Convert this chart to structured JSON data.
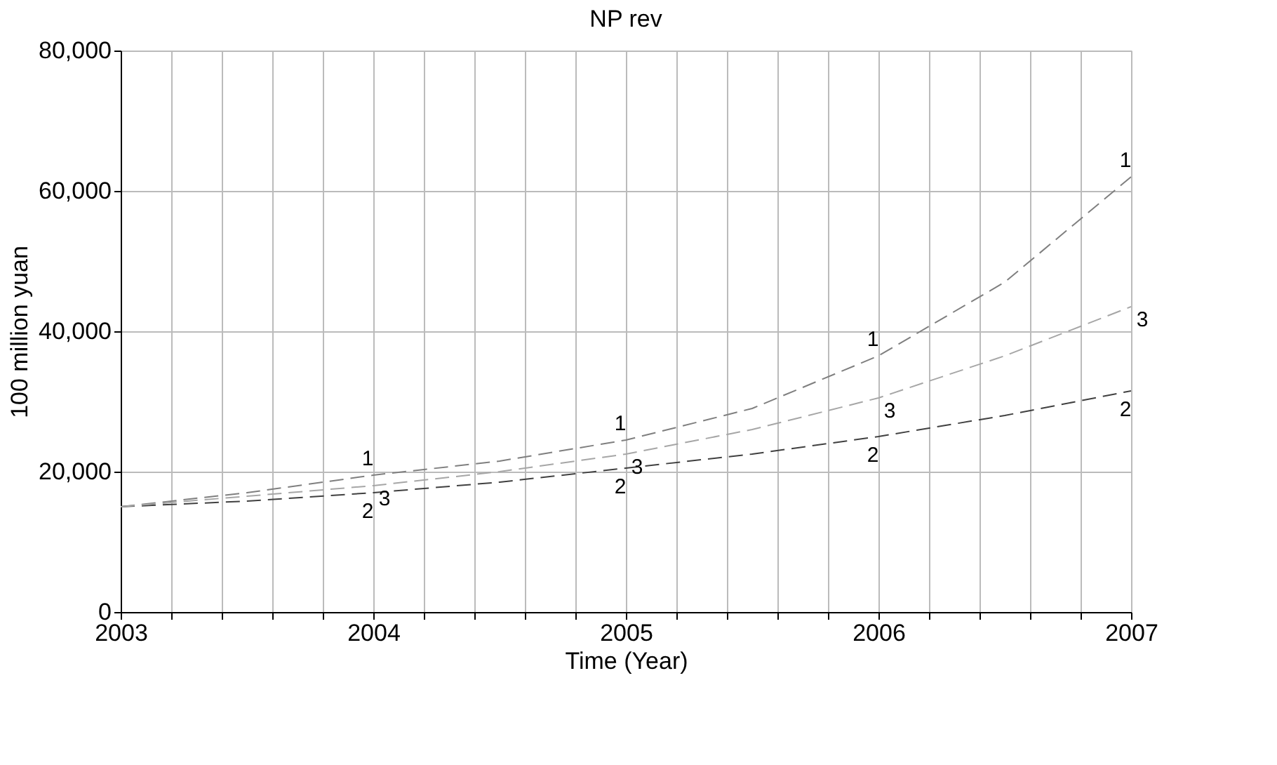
{
  "chart_data": {
    "type": "line",
    "title": "NP rev",
    "xlabel": "Time (Year)",
    "ylabel": "100 million yuan",
    "x": [
      2003,
      2003.5,
      2004,
      2004.5,
      2005,
      2005.5,
      2006,
      2006.5,
      2007
    ],
    "series": [
      {
        "name": "1",
        "color": "#7f7f7f",
        "values": [
          15000,
          17000,
          19500,
          21500,
          24500,
          29000,
          36500,
          47000,
          62000
        ]
      },
      {
        "name": "2",
        "color": "#404040",
        "values": [
          15000,
          15800,
          17000,
          18500,
          20500,
          22500,
          25000,
          28000,
          31500
        ]
      },
      {
        "name": "3",
        "color": "#a6a6a6",
        "values": [
          15000,
          16500,
          18000,
          20000,
          22500,
          26000,
          30500,
          36500,
          43500
        ]
      }
    ],
    "xlim": [
      2003,
      2007
    ],
    "xticks": [
      2003,
      {
        "value": 2003.2,
        "label": null
      },
      {
        "value": 2003.4,
        "label": null
      },
      {
        "value": 2003.6,
        "label": null
      },
      {
        "value": 2003.8,
        "label": null
      },
      2004,
      {
        "value": 2004.2,
        "label": null
      },
      {
        "value": 2004.4,
        "label": null
      },
      {
        "value": 2004.6,
        "label": null
      },
      {
        "value": 2004.8,
        "label": null
      },
      2005,
      {
        "value": 2005.2,
        "label": null
      },
      {
        "value": 2005.4,
        "label": null
      },
      {
        "value": 2005.6,
        "label": null
      },
      {
        "value": 2005.8,
        "label": null
      },
      2006,
      {
        "value": 2006.2,
        "label": null
      },
      {
        "value": 2006.4,
        "label": null
      },
      {
        "value": 2006.6,
        "label": null
      },
      {
        "value": 2006.8,
        "label": null
      },
      2007
    ],
    "ylim": [
      0,
      80000
    ],
    "yticks": [
      0,
      {
        "value": 20000,
        "label": "20,000"
      },
      {
        "value": 40000,
        "label": "40,000"
      },
      {
        "value": 60000,
        "label": "60,000"
      },
      {
        "value": 80000,
        "label": "80,000"
      }
    ],
    "grid": true,
    "legend": false,
    "marker": "none",
    "line_style": "dashed"
  }
}
